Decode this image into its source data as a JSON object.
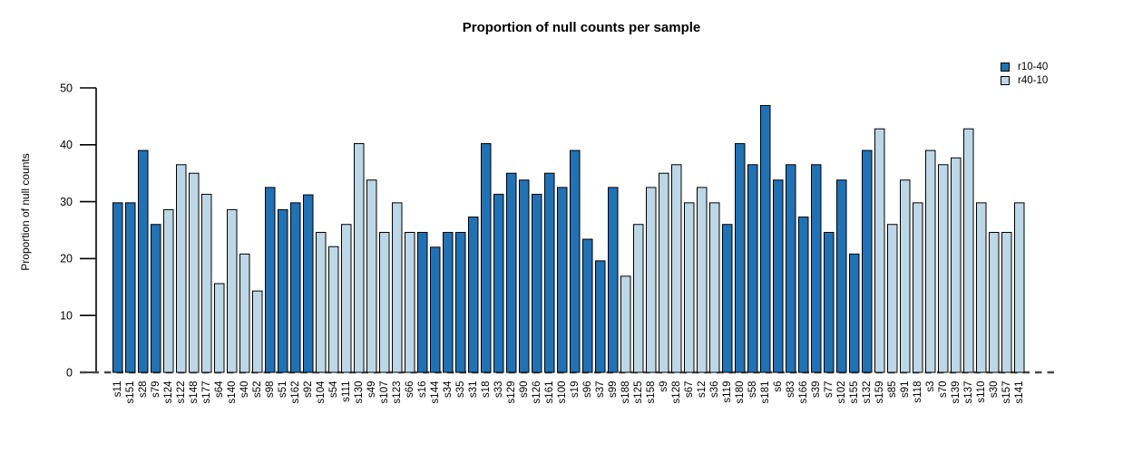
{
  "chart_data": {
    "type": "bar",
    "title": "Proportion of null counts per sample",
    "ylabel": "Proportion of null counts",
    "xlabel": "",
    "ylim": [
      0,
      50
    ],
    "yticks": [
      0,
      10,
      20,
      30,
      40,
      50
    ],
    "grid": false,
    "legend_position": "top-right",
    "baseline_style": "dashed",
    "legend": [
      {
        "label": "r10-40",
        "color": "#2171B5"
      },
      {
        "label": "r40-10",
        "color": "#BDD7E7"
      }
    ],
    "bars": [
      {
        "sample": "s11",
        "value": 29.8,
        "group": "r10-40"
      },
      {
        "sample": "s151",
        "value": 29.8,
        "group": "r10-40"
      },
      {
        "sample": "s28",
        "value": 39.0,
        "group": "r10-40"
      },
      {
        "sample": "s79",
        "value": 26.0,
        "group": "r10-40"
      },
      {
        "sample": "s124",
        "value": 28.6,
        "group": "r40-10"
      },
      {
        "sample": "s122",
        "value": 36.5,
        "group": "r40-10"
      },
      {
        "sample": "s148",
        "value": 35.0,
        "group": "r40-10"
      },
      {
        "sample": "s177",
        "value": 31.3,
        "group": "r40-10"
      },
      {
        "sample": "s64",
        "value": 15.6,
        "group": "r40-10"
      },
      {
        "sample": "s140",
        "value": 28.6,
        "group": "r40-10"
      },
      {
        "sample": "s40",
        "value": 20.8,
        "group": "r40-10"
      },
      {
        "sample": "s52",
        "value": 14.3,
        "group": "r40-10"
      },
      {
        "sample": "s98",
        "value": 32.5,
        "group": "r10-40"
      },
      {
        "sample": "s51",
        "value": 28.6,
        "group": "r10-40"
      },
      {
        "sample": "s162",
        "value": 29.8,
        "group": "r10-40"
      },
      {
        "sample": "s92",
        "value": 31.2,
        "group": "r10-40"
      },
      {
        "sample": "s104",
        "value": 24.6,
        "group": "r40-10"
      },
      {
        "sample": "s54",
        "value": 22.1,
        "group": "r40-10"
      },
      {
        "sample": "s111",
        "value": 26.0,
        "group": "r40-10"
      },
      {
        "sample": "s130",
        "value": 40.2,
        "group": "r40-10"
      },
      {
        "sample": "s49",
        "value": 33.8,
        "group": "r40-10"
      },
      {
        "sample": "s107",
        "value": 24.6,
        "group": "r40-10"
      },
      {
        "sample": "s123",
        "value": 29.8,
        "group": "r40-10"
      },
      {
        "sample": "s66",
        "value": 24.6,
        "group": "r40-10"
      },
      {
        "sample": "s16",
        "value": 24.6,
        "group": "r10-40"
      },
      {
        "sample": "s144",
        "value": 22.0,
        "group": "r10-40"
      },
      {
        "sample": "s34",
        "value": 24.6,
        "group": "r10-40"
      },
      {
        "sample": "s35",
        "value": 24.6,
        "group": "r10-40"
      },
      {
        "sample": "s31",
        "value": 27.3,
        "group": "r10-40"
      },
      {
        "sample": "s18",
        "value": 40.2,
        "group": "r10-40"
      },
      {
        "sample": "s33",
        "value": 31.3,
        "group": "r10-40"
      },
      {
        "sample": "s129",
        "value": 35.0,
        "group": "r10-40"
      },
      {
        "sample": "s90",
        "value": 33.8,
        "group": "r10-40"
      },
      {
        "sample": "s126",
        "value": 31.3,
        "group": "r10-40"
      },
      {
        "sample": "s161",
        "value": 35.0,
        "group": "r10-40"
      },
      {
        "sample": "s100",
        "value": 32.5,
        "group": "r10-40"
      },
      {
        "sample": "s19",
        "value": 39.0,
        "group": "r10-40"
      },
      {
        "sample": "s96",
        "value": 23.4,
        "group": "r10-40"
      },
      {
        "sample": "s37",
        "value": 19.6,
        "group": "r10-40"
      },
      {
        "sample": "s99",
        "value": 32.5,
        "group": "r10-40"
      },
      {
        "sample": "s188",
        "value": 16.9,
        "group": "r40-10"
      },
      {
        "sample": "s125",
        "value": 26.0,
        "group": "r40-10"
      },
      {
        "sample": "s158",
        "value": 32.5,
        "group": "r40-10"
      },
      {
        "sample": "s9",
        "value": 35.0,
        "group": "r40-10"
      },
      {
        "sample": "s128",
        "value": 36.5,
        "group": "r40-10"
      },
      {
        "sample": "s67",
        "value": 29.8,
        "group": "r40-10"
      },
      {
        "sample": "s12",
        "value": 32.5,
        "group": "r40-10"
      },
      {
        "sample": "s36",
        "value": 29.8,
        "group": "r40-10"
      },
      {
        "sample": "s119",
        "value": 26.0,
        "group": "r10-40"
      },
      {
        "sample": "s180",
        "value": 40.2,
        "group": "r10-40"
      },
      {
        "sample": "s58",
        "value": 36.5,
        "group": "r10-40"
      },
      {
        "sample": "s181",
        "value": 46.9,
        "group": "r10-40"
      },
      {
        "sample": "s6",
        "value": 33.8,
        "group": "r10-40"
      },
      {
        "sample": "s83",
        "value": 36.5,
        "group": "r10-40"
      },
      {
        "sample": "s166",
        "value": 27.3,
        "group": "r10-40"
      },
      {
        "sample": "s39",
        "value": 36.5,
        "group": "r10-40"
      },
      {
        "sample": "s77",
        "value": 24.6,
        "group": "r10-40"
      },
      {
        "sample": "s102",
        "value": 33.8,
        "group": "r10-40"
      },
      {
        "sample": "s155",
        "value": 20.8,
        "group": "r10-40"
      },
      {
        "sample": "s132",
        "value": 39.0,
        "group": "r10-40"
      },
      {
        "sample": "s159",
        "value": 42.8,
        "group": "r40-10"
      },
      {
        "sample": "s85",
        "value": 26.0,
        "group": "r40-10"
      },
      {
        "sample": "s91",
        "value": 33.8,
        "group": "r40-10"
      },
      {
        "sample": "s118",
        "value": 29.8,
        "group": "r40-10"
      },
      {
        "sample": "s3",
        "value": 39.0,
        "group": "r40-10"
      },
      {
        "sample": "s70",
        "value": 36.5,
        "group": "r40-10"
      },
      {
        "sample": "s139",
        "value": 37.7,
        "group": "r40-10"
      },
      {
        "sample": "s137",
        "value": 42.8,
        "group": "r40-10"
      },
      {
        "sample": "s110",
        "value": 29.8,
        "group": "r40-10"
      },
      {
        "sample": "s30",
        "value": 24.6,
        "group": "r40-10"
      },
      {
        "sample": "s157",
        "value": 24.6,
        "group": "r40-10"
      },
      {
        "sample": "s141",
        "value": 29.8,
        "group": "r40-10"
      }
    ]
  }
}
